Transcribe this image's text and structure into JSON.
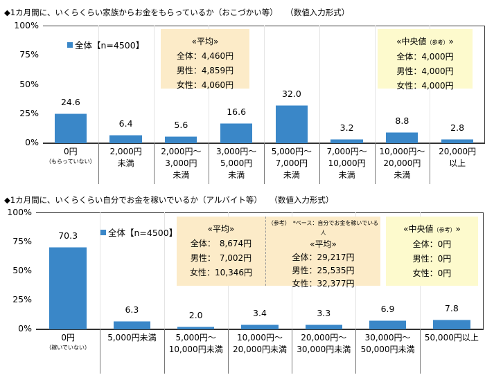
{
  "chart_data": [
    {
      "type": "bar",
      "title": "◆1カ月間に、いくらくらい家族からお金をもらっているか（おこづかい等）　　（数値入力形式）",
      "legend": "全体【n=4500】",
      "ylim": [
        0,
        100
      ],
      "yticks": [
        "0%",
        "25%",
        "50%",
        "75%",
        "100%"
      ],
      "categories": [
        [
          "0円",
          "（もらっていない）"
        ],
        [
          "2,000円",
          "未満"
        ],
        [
          "2,000円～",
          "3,000円",
          "未満"
        ],
        [
          "3,000円～",
          "5,000円",
          "未満"
        ],
        [
          "5,000円～",
          "7,000円",
          "未満"
        ],
        [
          "7,000円～",
          "10,000円",
          "未満"
        ],
        [
          "10,000円～",
          "20,000円",
          "未満"
        ],
        [
          "20,000円",
          "以上"
        ]
      ],
      "values": [
        24.6,
        6.4,
        5.6,
        16.6,
        32.0,
        3.2,
        8.8,
        2.8
      ],
      "annotations": {
        "average": {
          "title": "«平均»",
          "lines": [
            "全体：4,460円",
            "男性：4,859円",
            "女性：4,060円"
          ]
        },
        "median": {
          "title": "«中央値",
          "note": "（参考）",
          "close": "»",
          "lines": [
            "全体：4,000円",
            "男性：4,000円",
            "女性：4,000円"
          ]
        }
      }
    },
    {
      "type": "bar",
      "title": "◆1カ月間に、いくらくらい自分でお金を稼いでいるか（アルバイト等）　　（数値入力形式）",
      "legend": "全体【n=4500】",
      "ylim": [
        0,
        100
      ],
      "yticks": [
        "0%",
        "25%",
        "50%",
        "75%",
        "100%"
      ],
      "categories": [
        [
          "0円",
          "（稼いでいない）"
        ],
        [
          "5,000円未満"
        ],
        [
          "5,000円～",
          "10,000円未満"
        ],
        [
          "10,000円～",
          "20,000円未満"
        ],
        [
          "20,000円～",
          "30,000円未満"
        ],
        [
          "30,000円～",
          "50,000円未満"
        ],
        [
          "50,000円以上"
        ]
      ],
      "values": [
        70.3,
        6.3,
        2.0,
        3.4,
        3.3,
        6.9,
        7.8
      ],
      "annotations": {
        "average": {
          "title": "«平均»",
          "lines": [
            "全体：　8,674円",
            "男性：　7,002円",
            "女性：10,346円"
          ]
        },
        "average_base": {
          "note": "（参考）　*ベース：自分でお金を稼いでいる人",
          "title": "«平均»",
          "lines": [
            "全体：29,217円",
            "男性：25,535円",
            "女性：32,377円"
          ]
        },
        "median": {
          "title": "«中央値",
          "note": "（参考）",
          "close": "»",
          "lines": [
            "全体：0円",
            "男性：0円",
            "女性：0円"
          ]
        }
      }
    }
  ],
  "colors": {
    "bar": "#3a87c8",
    "average_box": "#fcebc8",
    "median_box": "#fdfacd"
  }
}
